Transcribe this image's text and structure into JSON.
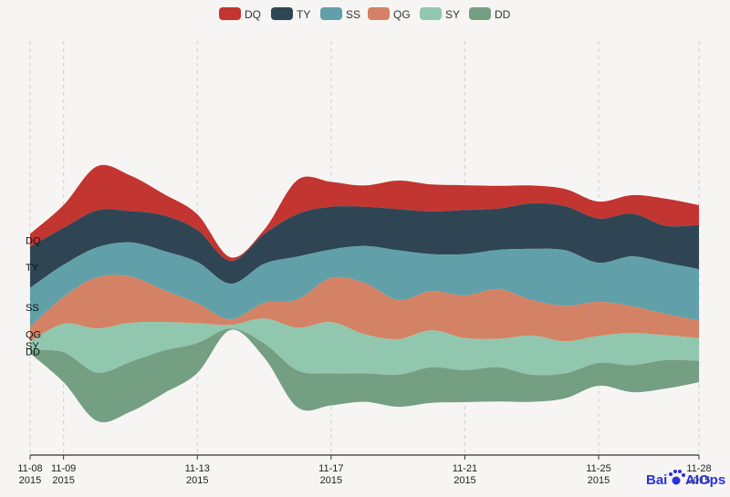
{
  "chart_data": {
    "type": "area",
    "subtype": "streamgraph",
    "x": [
      "2015-11-08",
      "2015-11-09",
      "2015-11-10",
      "2015-11-11",
      "2015-11-12",
      "2015-11-13",
      "2015-11-14",
      "2015-11-15",
      "2015-11-16",
      "2015-11-17",
      "2015-11-18",
      "2015-11-19",
      "2015-11-20",
      "2015-11-21",
      "2015-11-22",
      "2015-11-23",
      "2015-11-24",
      "2015-11-25",
      "2015-11-26",
      "2015-11-27",
      "2015-11-28"
    ],
    "x_ticks": [
      {
        "date": "2015-11-08",
        "line1": "11-08",
        "line2": "2015"
      },
      {
        "date": "2015-11-09",
        "line1": "11-09",
        "line2": "2015"
      },
      {
        "date": "2015-11-13",
        "line1": "11-13",
        "line2": "2015"
      },
      {
        "date": "2015-11-17",
        "line1": "11-17",
        "line2": "2015"
      },
      {
        "date": "2015-11-21",
        "line1": "11-21",
        "line2": "2015"
      },
      {
        "date": "2015-11-25",
        "line1": "11-25",
        "line2": "2015"
      },
      {
        "date": "2015-11-28",
        "line1": "11-28",
        "line2": "2015"
      }
    ],
    "series": [
      {
        "name": "DQ",
        "color": "#c23531",
        "values": [
          18,
          32,
          62,
          50,
          30,
          22,
          5,
          6,
          48,
          35,
          30,
          40,
          38,
          35,
          32,
          25,
          24,
          24,
          26,
          38,
          28
        ]
      },
      {
        "name": "TY",
        "color": "#2f4554",
        "values": [
          58,
          52,
          52,
          44,
          50,
          45,
          32,
          42,
          60,
          60,
          55,
          58,
          60,
          62,
          58,
          64,
          62,
          62,
          60,
          52,
          62
        ]
      },
      {
        "name": "SS",
        "color": "#61a0a8",
        "values": [
          55,
          45,
          42,
          48,
          55,
          58,
          50,
          55,
          60,
          40,
          52,
          70,
          52,
          58,
          55,
          72,
          78,
          55,
          70,
          72,
          72
        ]
      },
      {
        "name": "QG",
        "color": "#d48265",
        "values": [
          20,
          38,
          72,
          65,
          45,
          28,
          8,
          22,
          40,
          62,
          72,
          55,
          55,
          60,
          70,
          50,
          50,
          48,
          38,
          30,
          25
        ]
      },
      {
        "name": "SY",
        "color": "#91c7ae",
        "values": [
          12,
          40,
          62,
          55,
          40,
          28,
          5,
          35,
          60,
          72,
          55,
          50,
          52,
          45,
          40,
          55,
          45,
          38,
          45,
          35,
          32
        ]
      },
      {
        "name": "DD",
        "color": "#749f83",
        "values": [
          5,
          42,
          68,
          70,
          60,
          42,
          2,
          20,
          52,
          45,
          40,
          45,
          50,
          45,
          48,
          38,
          35,
          32,
          38,
          40,
          30
        ]
      }
    ]
  },
  "legend": [
    {
      "name": "DQ",
      "color": "#c23531"
    },
    {
      "name": "TY",
      "color": "#2f4554"
    },
    {
      "name": "SS",
      "color": "#61a0a8"
    },
    {
      "name": "QG",
      "color": "#d48265"
    },
    {
      "name": "SY",
      "color": "#91c7ae"
    },
    {
      "name": "DD",
      "color": "#749f83"
    }
  ],
  "watermark": {
    "part1": "Bai",
    "part2": "AIOps",
    "icon": "paw-icon"
  }
}
